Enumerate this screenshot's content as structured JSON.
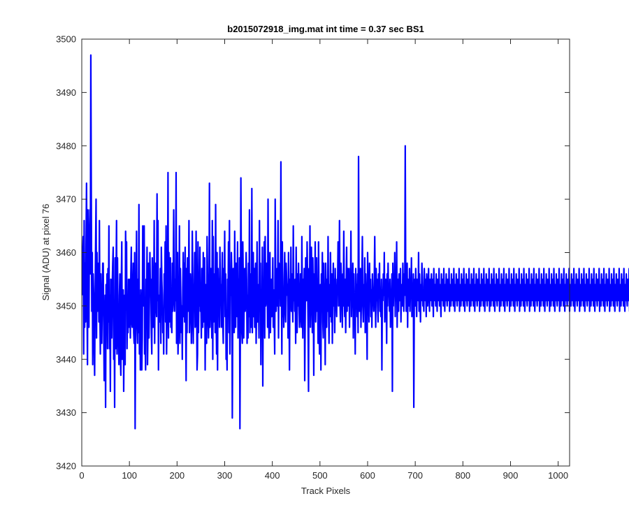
{
  "chart_data": {
    "type": "line",
    "title": "b2015072918_img.mat int time = 0.37 sec   BS1",
    "xlabel": "Track Pixels",
    "ylabel": "Signal (ADU) at pixel 76",
    "xlim": [
      0,
      1024
    ],
    "ylim": [
      3420,
      3500
    ],
    "xticks": [
      0,
      100,
      200,
      300,
      400,
      500,
      600,
      700,
      800,
      900,
      1000
    ],
    "yticks": [
      3420,
      3430,
      3440,
      3450,
      3460,
      3470,
      3480,
      3490,
      3500
    ],
    "grid": false,
    "series": [
      {
        "color": "#0000ff",
        "x_start": 1,
        "x_step": 1,
        "values": [
          3452,
          3460,
          3463,
          3441,
          3466,
          3446,
          3458,
          3447,
          3462,
          3473,
          3451,
          3439,
          3468,
          3455,
          3446,
          3463,
          3468,
          3456,
          3497,
          3470,
          3449,
          3460,
          3439,
          3456,
          3452,
          3444,
          3437,
          3451,
          3461,
          3470,
          3444,
          3460,
          3449,
          3451,
          3458,
          3447,
          3466,
          3449,
          3441,
          3456,
          3445,
          3443,
          3451,
          3458,
          3458,
          3447,
          3436,
          3444,
          3452,
          3431,
          3454,
          3447,
          3456,
          3442,
          3457,
          3447,
          3465,
          3442,
          3452,
          3434,
          3455,
          3449,
          3444,
          3454,
          3458,
          3461,
          3440,
          3449,
          3431,
          3459,
          3442,
          3455,
          3466,
          3441,
          3459,
          3446,
          3444,
          3439,
          3452,
          3456,
          3441,
          3437,
          3454,
          3462,
          3440,
          3445,
          3453,
          3434,
          3445,
          3452,
          3439,
          3464,
          3455,
          3462,
          3442,
          3450,
          3445,
          3455,
          3446,
          3451,
          3455,
          3444,
          3456,
          3461,
          3447,
          3446,
          3453,
          3458,
          3445,
          3443,
          3460,
          3427,
          3449,
          3452,
          3464,
          3446,
          3443,
          3455,
          3445,
          3469,
          3441,
          3452,
          3438,
          3453,
          3449,
          3438,
          3444,
          3465,
          3452,
          3450,
          3465,
          3441,
          3443,
          3438,
          3455,
          3449,
          3461,
          3439,
          3446,
          3458,
          3444,
          3451,
          3460,
          3453,
          3455,
          3445,
          3441,
          3459,
          3453,
          3446,
          3449,
          3466,
          3443,
          3457,
          3458,
          3450,
          3448,
          3471,
          3451,
          3466,
          3438,
          3452,
          3447,
          3450,
          3457,
          3443,
          3461,
          3455,
          3452,
          3445,
          3449,
          3441,
          3456,
          3452,
          3462,
          3447,
          3465,
          3441,
          3449,
          3451,
          3475,
          3444,
          3460,
          3447,
          3455,
          3459,
          3446,
          3448,
          3445,
          3458,
          3449,
          3456,
          3468,
          3451,
          3449,
          3455,
          3451,
          3475,
          3443,
          3455,
          3460,
          3441,
          3446,
          3447,
          3465,
          3443,
          3457,
          3451,
          3445,
          3450,
          3440,
          3453,
          3460,
          3448,
          3458,
          3447,
          3461,
          3450,
          3436,
          3457,
          3445,
          3459,
          3449,
          3451,
          3466,
          3445,
          3450,
          3456,
          3452,
          3443,
          3448,
          3464,
          3455,
          3443,
          3454,
          3451,
          3460,
          3446,
          3447,
          3464,
          3452,
          3438,
          3441,
          3462,
          3445,
          3455,
          3450,
          3461,
          3449,
          3451,
          3444,
          3457,
          3452,
          3446,
          3460,
          3447,
          3455,
          3459,
          3438,
          3454,
          3451,
          3443,
          3463,
          3456,
          3448,
          3444,
          3450,
          3473,
          3446,
          3453,
          3457,
          3450,
          3444,
          3466,
          3440,
          3463,
          3447,
          3453,
          3456,
          3445,
          3469,
          3449,
          3441,
          3460,
          3438,
          3457,
          3451,
          3455,
          3446,
          3461,
          3451,
          3454,
          3446,
          3453,
          3460,
          3447,
          3443,
          3457,
          3452,
          3464,
          3448,
          3456,
          3440,
          3446,
          3438,
          3455,
          3450,
          3462,
          3445,
          3466,
          3441,
          3454,
          3452,
          3460,
          3456,
          3429,
          3449,
          3457,
          3451,
          3445,
          3464,
          3451,
          3446,
          3458,
          3452,
          3448,
          3462,
          3444,
          3455,
          3447,
          3459,
          3427,
          3450,
          3474,
          3456,
          3445,
          3443,
          3462,
          3455,
          3444,
          3452,
          3457,
          3449,
          3451,
          3460,
          3455,
          3443,
          3452,
          3444,
          3458,
          3448,
          3468,
          3445,
          3456,
          3450,
          3446,
          3472,
          3445,
          3453,
          3460,
          3448,
          3457,
          3446,
          3455,
          3458,
          3443,
          3450,
          3462,
          3447,
          3454,
          3452,
          3444,
          3466,
          3449,
          3458,
          3439,
          3453,
          3445,
          3461,
          3435,
          3454,
          3449,
          3462,
          3444,
          3463,
          3450,
          3451,
          3458,
          3456,
          3446,
          3470,
          3452,
          3444,
          3450,
          3460,
          3445,
          3451,
          3455,
          3448,
          3452,
          3459,
          3446,
          3453,
          3448,
          3441,
          3470,
          3455,
          3449,
          3452,
          3457,
          3450,
          3466,
          3444,
          3458,
          3453,
          3456,
          3450,
          3477,
          3454,
          3441,
          3462,
          3448,
          3453,
          3446,
          3455,
          3460,
          3450,
          3447,
          3458,
          3455,
          3452,
          3454,
          3444,
          3460,
          3452,
          3438,
          3455,
          3450,
          3461,
          3449,
          3456,
          3452,
          3447,
          3465,
          3451,
          3454,
          3449,
          3455,
          3443,
          3461,
          3452,
          3445,
          3456,
          3450,
          3458,
          3451,
          3446,
          3448,
          3456,
          3451,
          3446,
          3463,
          3452,
          3444,
          3455,
          3449,
          3457,
          3436,
          3448,
          3459,
          3452,
          3451,
          3462,
          3455,
          3447,
          3434,
          3457,
          3450,
          3465,
          3446,
          3452,
          3461,
          3454,
          3445,
          3459,
          3452,
          3437,
          3456,
          3450,
          3462,
          3447,
          3453,
          3459,
          3449,
          3455,
          3443,
          3462,
          3452,
          3441,
          3450,
          3454,
          3438,
          3456,
          3449,
          3460,
          3447,
          3444,
          3458,
          3451,
          3454,
          3439,
          3458,
          3452,
          3446,
          3455,
          3449,
          3463,
          3451,
          3443,
          3454,
          3448,
          3460,
          3453,
          3447,
          3456,
          3443,
          3452,
          3458,
          3450,
          3455,
          3445,
          3457,
          3452,
          3451,
          3448,
          3455,
          3454,
          3462,
          3450,
          3453,
          3466,
          3451,
          3447,
          3458,
          3455,
          3452,
          3446,
          3456,
          3450,
          3464,
          3452,
          3448,
          3455,
          3445,
          3453,
          3461,
          3449,
          3457,
          3452,
          3450,
          3457,
          3446,
          3455,
          3452,
          3464,
          3448,
          3453,
          3451,
          3458,
          3444,
          3456,
          3449,
          3452,
          3441,
          3457,
          3450,
          3454,
          3448,
          3456,
          3445,
          3478,
          3455,
          3449,
          3452,
          3457,
          3446,
          3451,
          3455,
          3463,
          3450,
          3447,
          3454,
          3451,
          3459,
          3445,
          3456,
          3452,
          3449,
          3440,
          3460,
          3454,
          3451,
          3447,
          3458,
          3452,
          3455,
          3448,
          3453,
          3446,
          3456,
          3451,
          3452,
          3449,
          3455,
          3463,
          3452,
          3446,
          3457,
          3451,
          3455,
          3450,
          3447,
          3456,
          3452,
          3458,
          3449,
          3452,
          3448,
          3455,
          3438,
          3453,
          3451,
          3456,
          3452,
          3460,
          3447,
          3453,
          3455,
          3451,
          3443,
          3456,
          3450,
          3458,
          3452,
          3454,
          3449,
          3455,
          3446,
          3453,
          3451,
          3456,
          3434,
          3458,
          3450,
          3454,
          3452,
          3460,
          3448,
          3455,
          3451,
          3462,
          3446,
          3453,
          3455,
          3449,
          3456,
          3452,
          3451,
          3457,
          3447,
          3454,
          3453,
          3450,
          3458,
          3452,
          3449,
          3456,
          3452,
          3480,
          3455,
          3449,
          3453,
          3458,
          3446,
          3455,
          3452,
          3450,
          3457,
          3449,
          3454,
          3452,
          3459,
          3448,
          3453,
          3451,
          3456,
          3431,
          3452,
          3455,
          3450,
          3457,
          3452,
          3448,
          3455,
          3453,
          3451,
          3460,
          3449,
          3456,
          3452,
          3447,
          3454,
          3451,
          3458,
          3455,
          3450,
          3452,
          3449,
          3457,
          3453,
          3451,
          3455,
          3448,
          3456,
          3452,
          3450,
          3454,
          3457,
          3452,
          3449,
          3455,
          3451,
          3453,
          3456,
          3450,
          3452,
          3455,
          3448,
          3457,
          3453,
          3451,
          3454,
          3450,
          3456,
          3452,
          3449,
          3455,
          3453,
          3451,
          3457,
          3450,
          3454,
          3452,
          3448,
          3456,
          3451,
          3453,
          3455,
          3450,
          3457,
          3452,
          3449,
          3454,
          3451,
          3456,
          3452,
          3450,
          3455,
          3453,
          3451,
          3457,
          3449,
          3454,
          3452,
          3450,
          3456,
          3451,
          3453,
          3455,
          3450,
          3457,
          3452,
          3449,
          3454,
          3451,
          3456,
          3452,
          3450,
          3455,
          3453,
          3451,
          3457,
          3449,
          3454,
          3452,
          3450,
          3456,
          3451,
          3453,
          3455,
          3450,
          3457,
          3452,
          3449,
          3454,
          3451,
          3456,
          3452,
          3450,
          3455,
          3453,
          3451,
          3457,
          3449,
          3454,
          3452,
          3450,
          3456,
          3451,
          3453,
          3455,
          3450,
          3457,
          3452,
          3449,
          3454,
          3451,
          3456,
          3452,
          3450,
          3455,
          3453,
          3451,
          3457,
          3449,
          3454,
          3452,
          3450,
          3456,
          3451,
          3453,
          3455,
          3450,
          3457,
          3452,
          3449,
          3454,
          3451,
          3456,
          3452,
          3450,
          3455,
          3453,
          3451,
          3457,
          3449,
          3454,
          3452,
          3450,
          3456,
          3451,
          3453,
          3455,
          3450,
          3457,
          3452,
          3449,
          3454,
          3451,
          3456,
          3452,
          3450,
          3455,
          3453,
          3451,
          3457,
          3449,
          3454,
          3452,
          3450,
          3456,
          3451,
          3453,
          3455,
          3450,
          3457,
          3452,
          3449,
          3454,
          3451,
          3456,
          3452,
          3450,
          3455,
          3453,
          3451,
          3457,
          3449,
          3454,
          3452,
          3450,
          3456,
          3451,
          3453,
          3455,
          3450,
          3457,
          3452,
          3449,
          3454,
          3451,
          3456,
          3452,
          3450,
          3455,
          3453,
          3451,
          3457,
          3449,
          3454,
          3452,
          3450,
          3456,
          3451,
          3453,
          3455,
          3450,
          3457,
          3452,
          3449,
          3454,
          3451,
          3456,
          3452,
          3450,
          3455,
          3453,
          3451,
          3457,
          3449,
          3454,
          3452,
          3450,
          3456,
          3451,
          3453,
          3455,
          3450,
          3457,
          3452,
          3449,
          3454,
          3451,
          3456,
          3452,
          3450,
          3455,
          3453,
          3451,
          3457,
          3449,
          3454,
          3452,
          3450,
          3456,
          3451,
          3453,
          3455,
          3450,
          3457,
          3452,
          3449,
          3454,
          3451,
          3456,
          3452,
          3450,
          3455,
          3453,
          3451,
          3457,
          3449,
          3454,
          3452,
          3450,
          3456,
          3451,
          3453,
          3455,
          3450,
          3457,
          3452,
          3449,
          3454,
          3451,
          3456,
          3452,
          3450,
          3455,
          3453,
          3451,
          3457,
          3449,
          3454,
          3452,
          3450,
          3456,
          3451,
          3453,
          3455,
          3450,
          3457,
          3452,
          3449,
          3454,
          3451,
          3456,
          3452,
          3450,
          3455,
          3453,
          3451,
          3457,
          3449,
          3454,
          3452,
          3450,
          3456,
          3451,
          3453,
          3455,
          3450,
          3457,
          3452,
          3449,
          3454,
          3451,
          3456,
          3452,
          3450,
          3455,
          3453,
          3451,
          3457,
          3449,
          3454,
          3452,
          3450,
          3456,
          3451,
          3453,
          3455,
          3450,
          3457,
          3452,
          3449,
          3454,
          3451,
          3456,
          3452,
          3450,
          3455,
          3453,
          3451,
          3457,
          3449,
          3454,
          3452,
          3450,
          3456,
          3451,
          3453,
          3455,
          3450,
          3457,
          3452,
          3449,
          3454,
          3451,
          3456,
          3452,
          3450,
          3455,
          3453,
          3451,
          3457,
          3449,
          3454,
          3452,
          3450,
          3456,
          3451,
          3453,
          3455,
          3450,
          3457,
          3452,
          3449,
          3454,
          3451,
          3456,
          3452,
          3450,
          3455,
          3453,
          3451,
          3457,
          3449,
          3454,
          3452,
          3450,
          3456,
          3451,
          3453,
          3455,
          3450,
          3457,
          3452,
          3449,
          3454,
          3451,
          3456,
          3452,
          3450,
          3455,
          3453,
          3451,
          3457,
          3449,
          3454,
          3452,
          3450,
          3456,
          3451,
          3453,
          3455,
          3450,
          3457,
          3452,
          3449,
          3454,
          3451,
          3456,
          3452,
          3450,
          3455,
          3453,
          3451,
          3457,
          3449,
          3454,
          3452,
          3450,
          3456,
          3451,
          3453,
          3455,
          3450,
          3457
        ]
      }
    ]
  }
}
